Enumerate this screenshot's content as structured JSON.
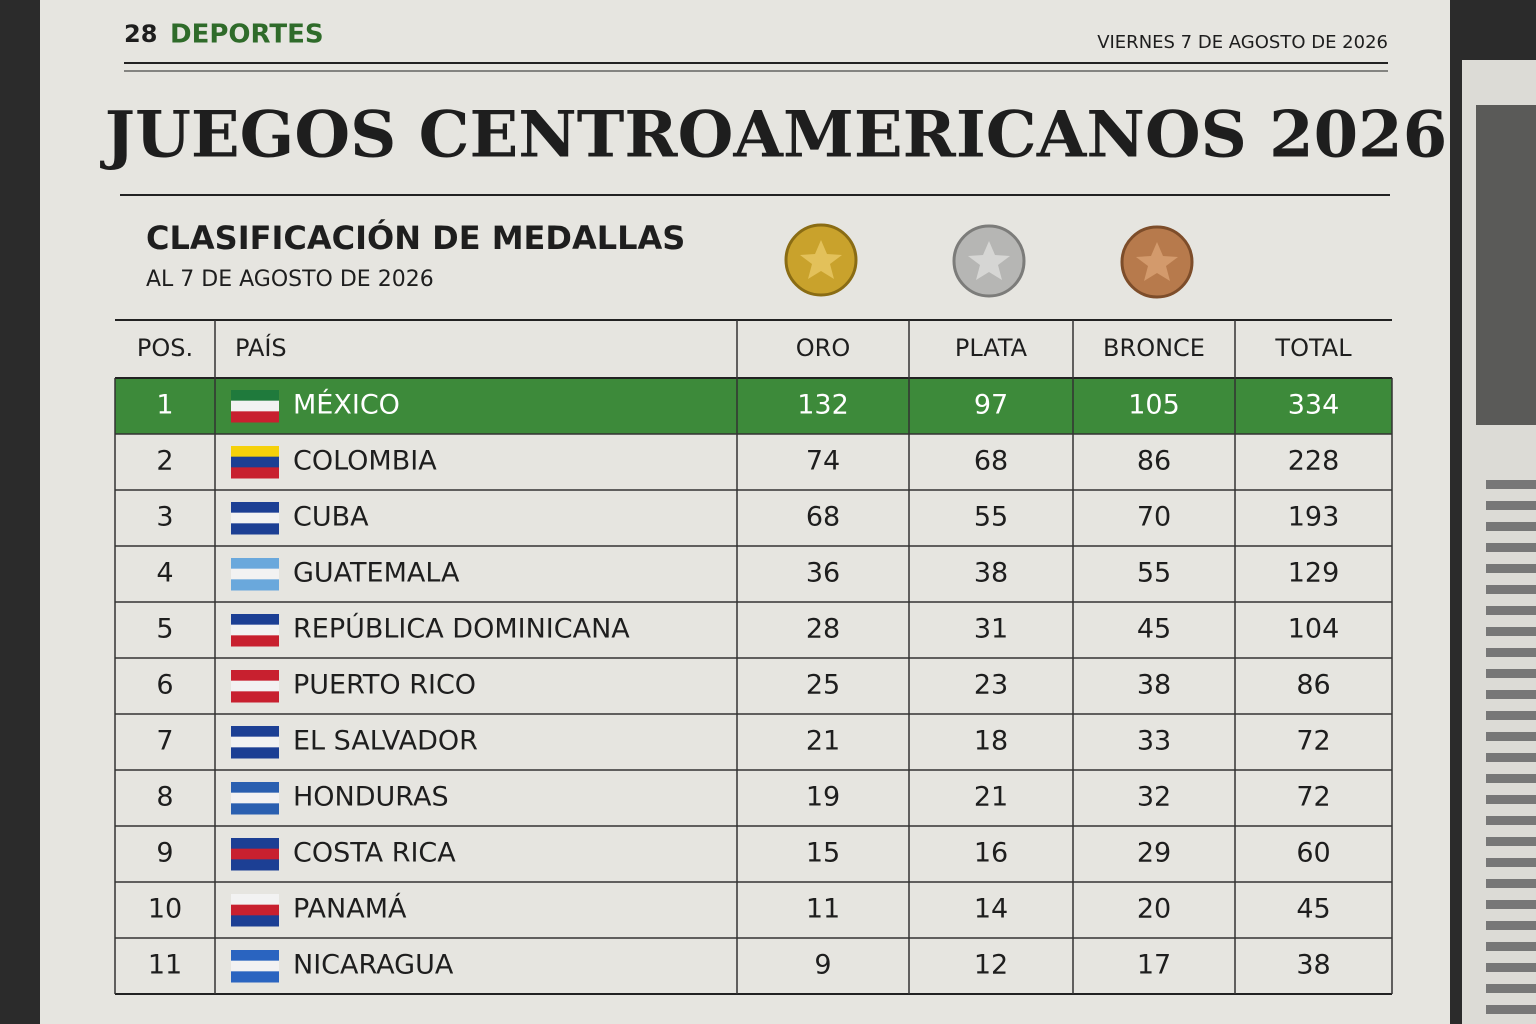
{
  "header": {
    "page": "28",
    "section": "DEPORTES",
    "date": "VIERNES 7 DE AGOSTO DE 2026"
  },
  "title": "JUEGOS CENTROAMERICANOS 2026",
  "subtitle": "CLASIFICACIÓN DE MEDALLAS",
  "subtitle_date": "AL 7 DE AGOSTO DE 2026",
  "table": {
    "columns": [
      "POS.",
      "PAÍS",
      "ORO",
      "PLATA",
      "BRONCE",
      "TOTAL"
    ],
    "rows": [
      [
        1,
        "MÉXICO",
        132,
        97,
        105,
        334
      ],
      [
        2,
        "COLOMBIA",
        74,
        68,
        86,
        228
      ],
      [
        3,
        "CUBA",
        68,
        55,
        70,
        193
      ],
      [
        4,
        "GUATEMALA",
        36,
        38,
        55,
        129
      ],
      [
        5,
        "REPÚBLICA DOMINICANA",
        28,
        31,
        45,
        104
      ],
      [
        6,
        "PUERTO RICO",
        25,
        23,
        38,
        86
      ],
      [
        7,
        "EL SALVADOR",
        21,
        18,
        33,
        72
      ],
      [
        8,
        "HONDURAS",
        19,
        21,
        32,
        72
      ],
      [
        9,
        "COSTA RICA",
        15,
        16,
        29,
        60
      ],
      [
        10,
        "PANAMÁ",
        11,
        14,
        20,
        45
      ],
      [
        11,
        "NICARAGUA",
        9,
        12,
        17,
        38
      ]
    ]
  }
}
